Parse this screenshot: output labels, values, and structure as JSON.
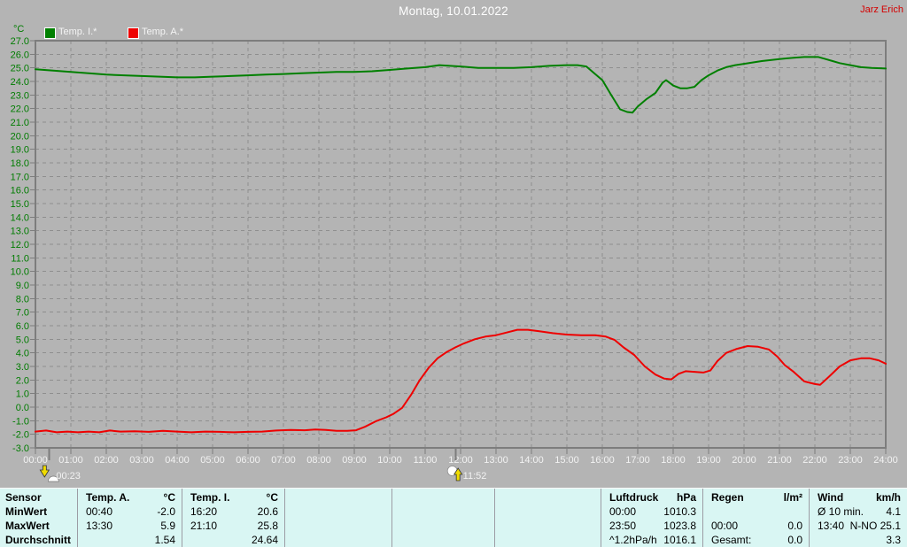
{
  "header": {
    "title": "Montag, 10.01.2022",
    "owner": "Jarz Erich"
  },
  "chart_data": {
    "type": "line",
    "y_unit_label": "°C",
    "ylim": [
      -3,
      27
    ],
    "y_tick_step": 1,
    "y_ticks": [
      "27.0",
      "26.0",
      "25.0",
      "24.0",
      "23.0",
      "22.0",
      "21.0",
      "20.0",
      "19.0",
      "18.0",
      "17.0",
      "16.0",
      "15.0",
      "14.0",
      "13.0",
      "12.0",
      "11.0",
      "10.0",
      "9.0",
      "8.0",
      "7.0",
      "6.0",
      "5.0",
      "4.0",
      "3.0",
      "2.0",
      "1.0",
      "0.0",
      "-1.0",
      "-2.0",
      "-3.0"
    ],
    "x_ticks": [
      "00:00",
      "01:00",
      "02:00",
      "03:00",
      "04:00",
      "05:00",
      "06:00",
      "07:00",
      "08:00",
      "09:00",
      "10:00",
      "11:00",
      "12:00",
      "13:00",
      "14:00",
      "15:00",
      "16:00",
      "17:00",
      "18:00",
      "19:00",
      "20:00",
      "21:00",
      "22:00",
      "23:00",
      "24:00"
    ],
    "grid": true,
    "legend_position": "top-left",
    "series": [
      {
        "id": "temp-i",
        "name": "Temp. I.*",
        "color": "#008000",
        "points": [
          [
            0,
            24.9
          ],
          [
            0.5,
            24.8
          ],
          [
            1,
            24.7
          ],
          [
            1.5,
            24.6
          ],
          [
            2,
            24.5
          ],
          [
            2.5,
            24.45
          ],
          [
            3,
            24.4
          ],
          [
            3.5,
            24.35
          ],
          [
            4,
            24.3
          ],
          [
            4.5,
            24.3
          ],
          [
            5,
            24.35
          ],
          [
            5.5,
            24.4
          ],
          [
            6,
            24.45
          ],
          [
            6.5,
            24.5
          ],
          [
            7,
            24.55
          ],
          [
            7.5,
            24.6
          ],
          [
            8,
            24.65
          ],
          [
            8.5,
            24.7
          ],
          [
            9,
            24.7
          ],
          [
            9.5,
            24.75
          ],
          [
            10,
            24.85
          ],
          [
            10.5,
            24.95
          ],
          [
            11,
            25.05
          ],
          [
            11.4,
            25.2
          ],
          [
            11.7,
            25.15
          ],
          [
            12,
            25.1
          ],
          [
            12.5,
            25.0
          ],
          [
            13,
            25.0
          ],
          [
            13.5,
            25.0
          ],
          [
            14,
            25.05
          ],
          [
            14.5,
            25.15
          ],
          [
            15,
            25.2
          ],
          [
            15.3,
            25.2
          ],
          [
            15.55,
            25.1
          ],
          [
            15.75,
            24.65
          ],
          [
            16,
            24.1
          ],
          [
            16.25,
            23.0
          ],
          [
            16.5,
            21.95
          ],
          [
            16.7,
            21.75
          ],
          [
            16.85,
            21.7
          ],
          [
            17,
            22.15
          ],
          [
            17.25,
            22.7
          ],
          [
            17.5,
            23.15
          ],
          [
            17.7,
            23.9
          ],
          [
            17.8,
            24.1
          ],
          [
            18,
            23.7
          ],
          [
            18.2,
            23.5
          ],
          [
            18.4,
            23.5
          ],
          [
            18.6,
            23.6
          ],
          [
            18.8,
            24.1
          ],
          [
            19,
            24.45
          ],
          [
            19.25,
            24.8
          ],
          [
            19.5,
            25.05
          ],
          [
            19.75,
            25.2
          ],
          [
            20,
            25.3
          ],
          [
            20.5,
            25.5
          ],
          [
            21,
            25.65
          ],
          [
            21.4,
            25.75
          ],
          [
            21.7,
            25.8
          ],
          [
            22.1,
            25.8
          ],
          [
            22.3,
            25.65
          ],
          [
            22.5,
            25.5
          ],
          [
            22.7,
            25.35
          ],
          [
            23,
            25.2
          ],
          [
            23.3,
            25.05
          ],
          [
            23.6,
            25.0
          ],
          [
            24,
            24.95
          ]
        ]
      },
      {
        "id": "temp-a",
        "name": "Temp. A.*",
        "color": "#ee0000",
        "points": [
          [
            0,
            -1.8
          ],
          [
            0.3,
            -1.72
          ],
          [
            0.6,
            -1.85
          ],
          [
            0.9,
            -1.8
          ],
          [
            1.2,
            -1.85
          ],
          [
            1.5,
            -1.8
          ],
          [
            1.8,
            -1.85
          ],
          [
            2.1,
            -1.72
          ],
          [
            2.4,
            -1.8
          ],
          [
            2.8,
            -1.78
          ],
          [
            3.2,
            -1.82
          ],
          [
            3.6,
            -1.75
          ],
          [
            4,
            -1.8
          ],
          [
            4.4,
            -1.85
          ],
          [
            4.8,
            -1.8
          ],
          [
            5.2,
            -1.82
          ],
          [
            5.6,
            -1.85
          ],
          [
            6,
            -1.82
          ],
          [
            6.4,
            -1.8
          ],
          [
            6.8,
            -1.72
          ],
          [
            7.2,
            -1.68
          ],
          [
            7.6,
            -1.7
          ],
          [
            7.9,
            -1.65
          ],
          [
            8.2,
            -1.68
          ],
          [
            8.5,
            -1.75
          ],
          [
            8.8,
            -1.75
          ],
          [
            9.05,
            -1.7
          ],
          [
            9.3,
            -1.45
          ],
          [
            9.6,
            -1.05
          ],
          [
            9.9,
            -0.75
          ],
          [
            10.1,
            -0.5
          ],
          [
            10.35,
            -0.05
          ],
          [
            10.6,
            0.9
          ],
          [
            10.85,
            2.0
          ],
          [
            11.1,
            2.9
          ],
          [
            11.35,
            3.6
          ],
          [
            11.6,
            4.05
          ],
          [
            11.85,
            4.4
          ],
          [
            12.1,
            4.7
          ],
          [
            12.4,
            5.0
          ],
          [
            12.7,
            5.2
          ],
          [
            13,
            5.3
          ],
          [
            13.3,
            5.5
          ],
          [
            13.6,
            5.7
          ],
          [
            13.9,
            5.7
          ],
          [
            14.2,
            5.6
          ],
          [
            14.6,
            5.45
          ],
          [
            15,
            5.35
          ],
          [
            15.4,
            5.3
          ],
          [
            15.8,
            5.3
          ],
          [
            16.1,
            5.2
          ],
          [
            16.35,
            4.95
          ],
          [
            16.6,
            4.4
          ],
          [
            16.9,
            3.85
          ],
          [
            17.2,
            3.0
          ],
          [
            17.5,
            2.4
          ],
          [
            17.75,
            2.1
          ],
          [
            17.95,
            2.05
          ],
          [
            18.15,
            2.45
          ],
          [
            18.35,
            2.65
          ],
          [
            18.6,
            2.6
          ],
          [
            18.85,
            2.55
          ],
          [
            19.05,
            2.7
          ],
          [
            19.25,
            3.4
          ],
          [
            19.5,
            4.0
          ],
          [
            19.8,
            4.3
          ],
          [
            20.1,
            4.5
          ],
          [
            20.4,
            4.45
          ],
          [
            20.7,
            4.25
          ],
          [
            20.95,
            3.7
          ],
          [
            21.15,
            3.1
          ],
          [
            21.4,
            2.6
          ],
          [
            21.7,
            1.9
          ],
          [
            22,
            1.7
          ],
          [
            22.15,
            1.65
          ],
          [
            22.4,
            2.25
          ],
          [
            22.7,
            3.0
          ],
          [
            23,
            3.45
          ],
          [
            23.3,
            3.6
          ],
          [
            23.55,
            3.6
          ],
          [
            23.8,
            3.45
          ],
          [
            24,
            3.2
          ]
        ]
      }
    ],
    "markers": [
      {
        "label": "00:23",
        "hour": 0.3833,
        "icon": "moonset-icon"
      },
      {
        "label": "11:52",
        "hour": 11.8667,
        "icon": "moonrise-icon"
      }
    ]
  },
  "colors": {
    "background": "#b4b4b4",
    "axis_label_green": "#007c00",
    "owner_red": "#d40000",
    "table_background": "#d9f6f3",
    "grid": "#8e8e8e",
    "frame": "#7d7d7d"
  },
  "table": {
    "columns": [
      {
        "id": "sensor",
        "bold": true,
        "header": {
          "l": "Sensor",
          "r": ""
        },
        "rows": [
          {
            "l": "MinWert",
            "r": ""
          },
          {
            "l": "MaxWert",
            "r": ""
          },
          {
            "l": "Durchschnitt",
            "r": ""
          }
        ]
      },
      {
        "id": "temp-a",
        "header": {
          "l": "Temp. A.",
          "r": "°C"
        },
        "rows": [
          {
            "l": "00:40",
            "r": "-2.0"
          },
          {
            "l": "13:30",
            "r": "5.9"
          },
          {
            "l": "",
            "r": "1.54"
          }
        ]
      },
      {
        "id": "temp-i",
        "header": {
          "l": "Temp. I.",
          "r": "°C"
        },
        "rows": [
          {
            "l": "16:20",
            "r": "20.6"
          },
          {
            "l": "21:10",
            "r": "25.8"
          },
          {
            "l": "",
            "r": "24.64"
          }
        ]
      },
      {
        "id": "empty-1",
        "header": {
          "l": "",
          "r": ""
        },
        "rows": [
          {
            "l": "",
            "r": ""
          },
          {
            "l": "",
            "r": ""
          },
          {
            "l": "",
            "r": ""
          }
        ]
      },
      {
        "id": "empty-2",
        "header": {
          "l": "",
          "r": ""
        },
        "rows": [
          {
            "l": "",
            "r": ""
          },
          {
            "l": "",
            "r": ""
          },
          {
            "l": "",
            "r": ""
          }
        ]
      },
      {
        "id": "empty-3",
        "header": {
          "l": "",
          "r": ""
        },
        "rows": [
          {
            "l": "",
            "r": ""
          },
          {
            "l": "",
            "r": ""
          },
          {
            "l": "",
            "r": ""
          }
        ]
      },
      {
        "id": "luftdruck",
        "header": {
          "l": "Luftdruck",
          "r": "hPa"
        },
        "rows": [
          {
            "l": "00:00",
            "r": "1010.3"
          },
          {
            "l": "23:50",
            "r": "1023.8"
          },
          {
            "l": "^1.2hPa/h",
            "r": "1016.1"
          }
        ]
      },
      {
        "id": "regen",
        "header": {
          "l": "Regen",
          "r": "l/m²"
        },
        "rows": [
          {
            "l": "",
            "r": ""
          },
          {
            "l": "00:00",
            "r": "0.0"
          },
          {
            "l": "Gesamt:",
            "r": "0.0"
          }
        ]
      },
      {
        "id": "wind",
        "header": {
          "l": "Wind",
          "r": "km/h"
        },
        "rows": [
          {
            "l": "Ø 10 min.",
            "r": "4.1"
          },
          {
            "l": "13:40",
            "r": "N-NO 25.1"
          },
          {
            "l": "",
            "r": "3.3"
          }
        ]
      }
    ]
  }
}
